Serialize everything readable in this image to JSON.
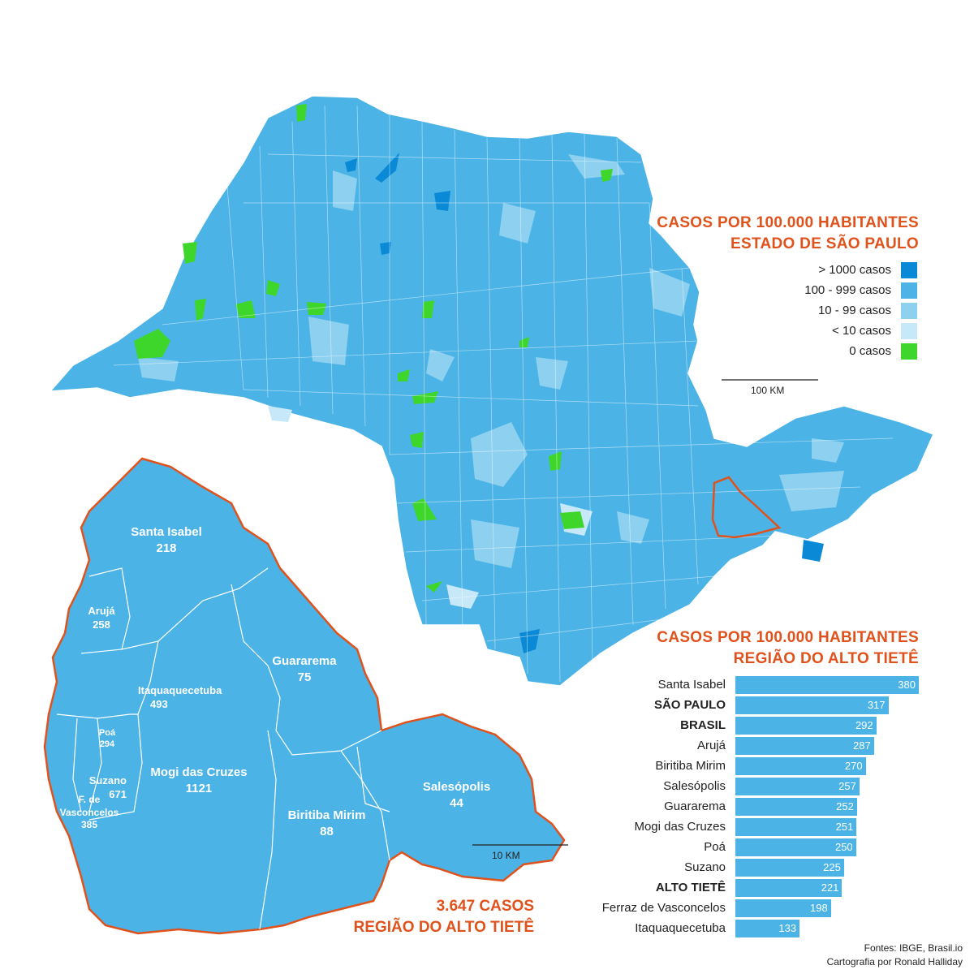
{
  "state_legend": {
    "title_line1": "CASOS POR 100.000 HABITANTES",
    "title_line2": "ESTADO DE SÃO PAULO",
    "items": [
      {
        "label": "> 1000 casos",
        "color": "#0a8ad6"
      },
      {
        "label": "100 - 999 casos",
        "color": "#4cb3e6"
      },
      {
        "label": "10 - 99 casos",
        "color": "#8ed0f0"
      },
      {
        "label": "< 10 casos",
        "color": "#c7e8f8"
      },
      {
        "label": "0 casos",
        "color": "#3fd62b"
      }
    ],
    "scale_label": "100 KM"
  },
  "region_map": {
    "scale_label": "10 KM",
    "municipalities": [
      {
        "name": "Santa Isabel",
        "value": "218"
      },
      {
        "name": "Arujá",
        "value": "258"
      },
      {
        "name": "Guararema",
        "value": "75"
      },
      {
        "name": "Itaquaquecetuba",
        "value": "493"
      },
      {
        "name": "Poá",
        "value": "294"
      },
      {
        "name": "Mogi das Cruzes",
        "value": "1121"
      },
      {
        "name": "Suzano",
        "value": "671"
      },
      {
        "name": "F. de Vasconcelos",
        "value": "385"
      },
      {
        "name": "Salesópolis",
        "value": "44"
      },
      {
        "name": "Biritiba Mirim",
        "value": "88"
      }
    ],
    "total_line1": "3.647 CASOS",
    "total_line2": "REGIÃO DO ALTO TIETÊ"
  },
  "chart_data": {
    "type": "bar",
    "title": "CASOS POR 100.000 HABITANTES",
    "subtitle": "REGIÃO DO ALTO TIETÊ",
    "orientation": "horizontal",
    "xlim": [
      0,
      380
    ],
    "categories": [
      "Santa Isabel",
      "SÃO PAULO",
      "BRASIL",
      "Arujá",
      "Biritiba Mirim",
      "Salesópolis",
      "Guararema",
      "Mogi das Cruzes",
      "Poá",
      "Suzano",
      "ALTO TIETÊ",
      "Ferraz de Vasconcelos",
      "Itaquaquecetuba"
    ],
    "bold": [
      false,
      true,
      true,
      false,
      false,
      false,
      false,
      false,
      false,
      false,
      true,
      false,
      false
    ],
    "values": [
      380,
      317,
      292,
      287,
      270,
      257,
      252,
      251,
      250,
      225,
      221,
      198,
      133
    ],
    "bar_color": "#4cb3e6"
  },
  "sources": {
    "line1": "Fontes: IBGE, Brasil.io",
    "line2": "Cartografia por Ronald Halliday"
  }
}
